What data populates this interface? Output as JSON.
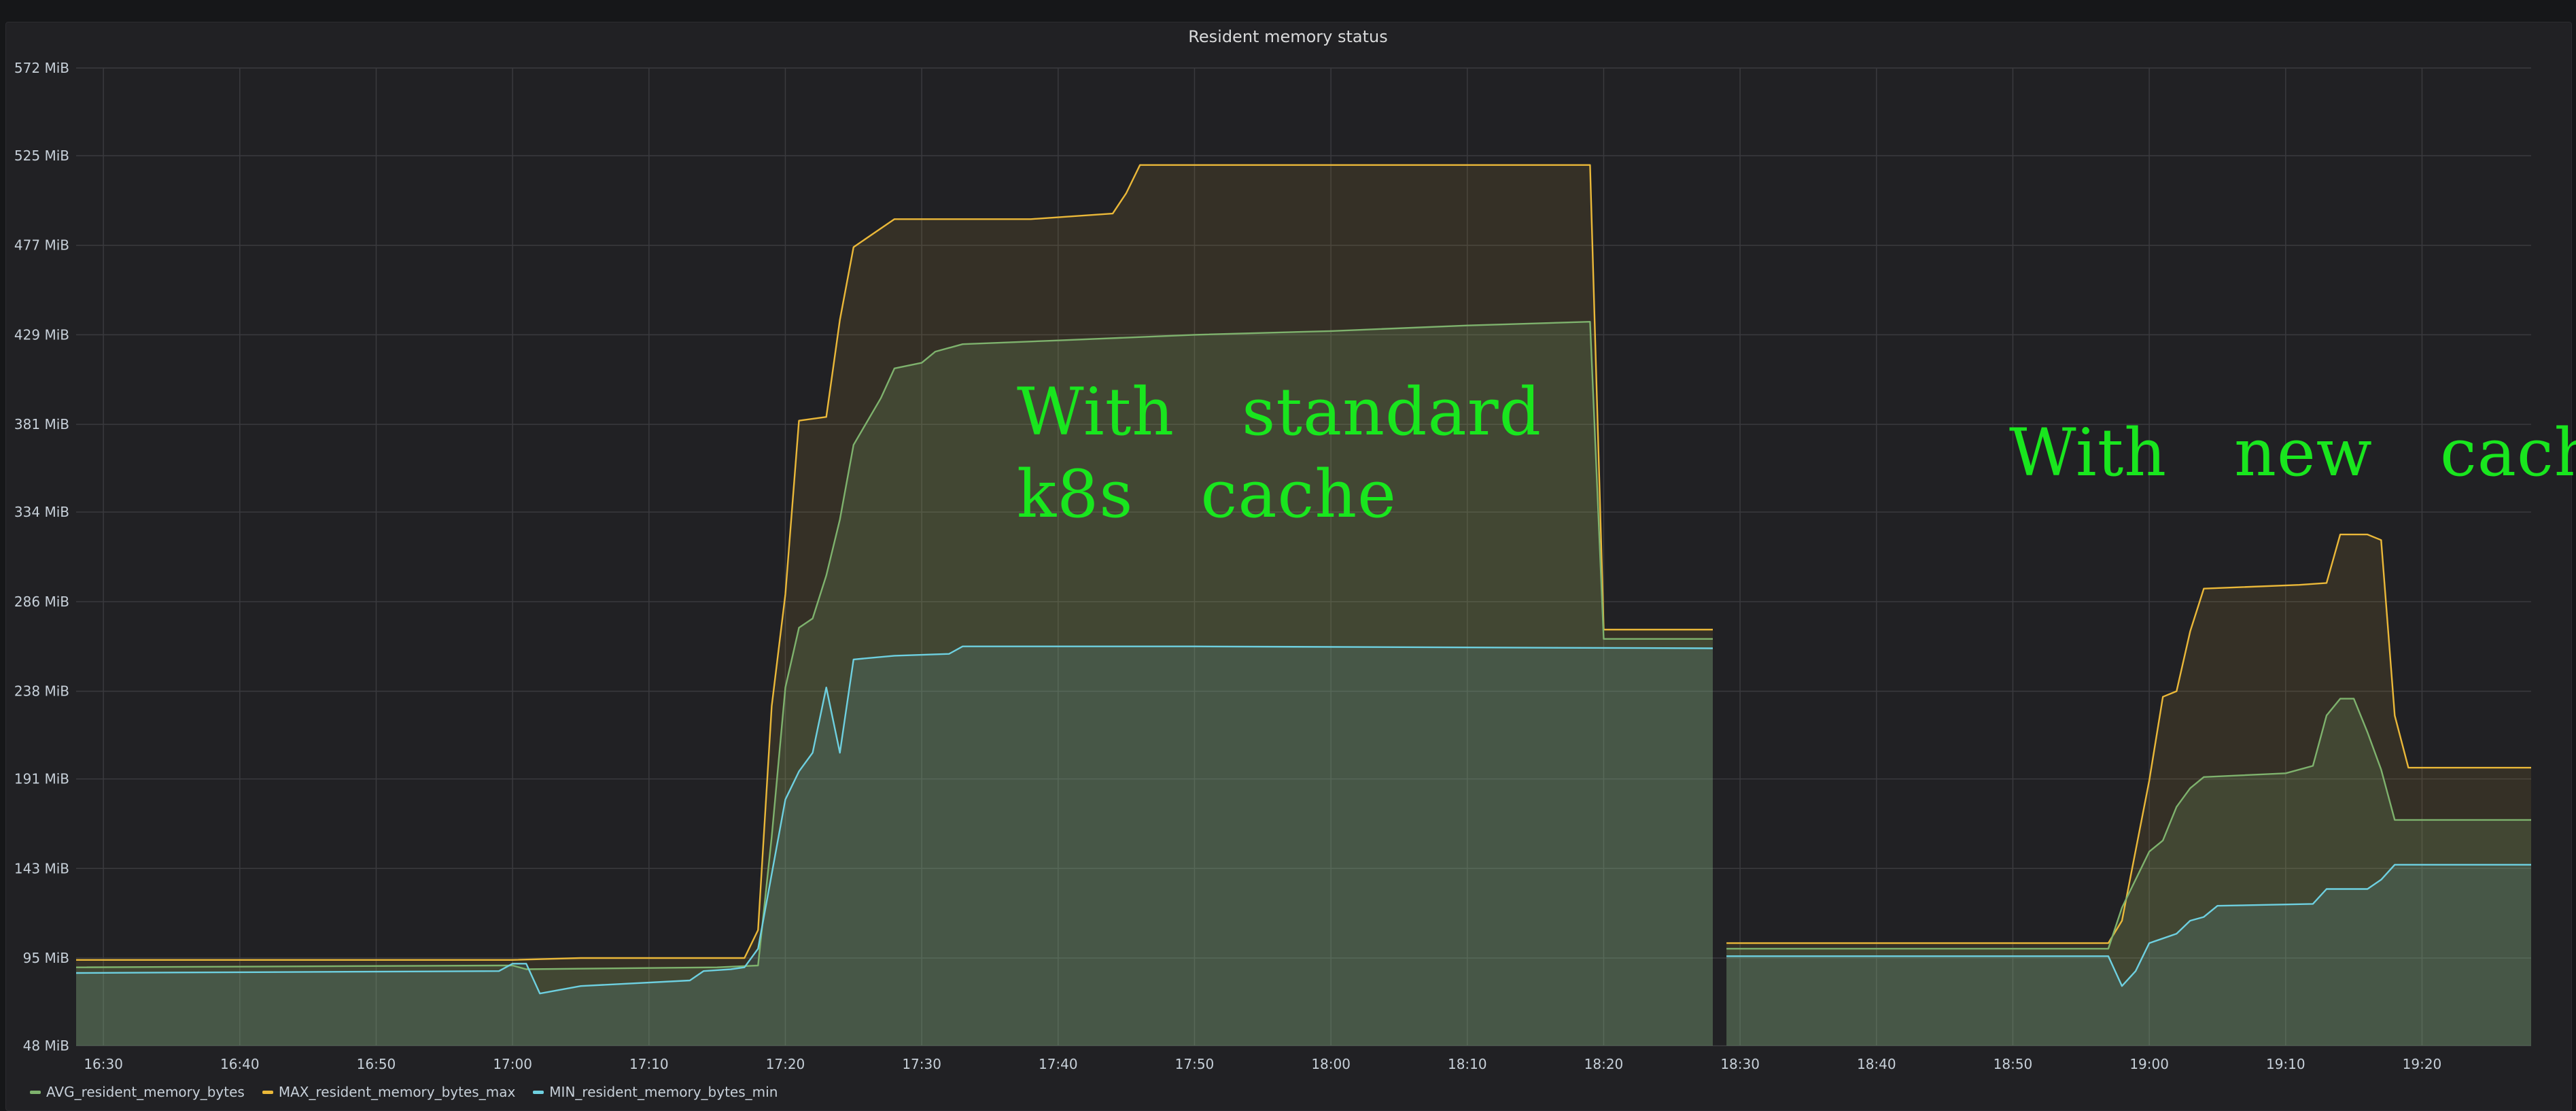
{
  "chart_data": {
    "type": "area",
    "title": "Resident memory status",
    "y_ticks": [
      "48 MiB",
      "95 MiB",
      "143 MiB",
      "191 MiB",
      "238 MiB",
      "286 MiB",
      "334 MiB",
      "381 MiB",
      "429 MiB",
      "477 MiB",
      "525 MiB",
      "572 MiB"
    ],
    "ylim": [
      48,
      572
    ],
    "x_ticks": [
      "16:30",
      "16:40",
      "16:50",
      "17:00",
      "17:10",
      "17:20",
      "17:30",
      "17:40",
      "17:50",
      "18:00",
      "18:10",
      "18:20",
      "18:30",
      "18:40",
      "18:50",
      "19:00",
      "19:10",
      "19:20"
    ],
    "xlim": [
      "16:28",
      "19:28"
    ],
    "grid": true,
    "legend_position": "bottom-left",
    "series": [
      {
        "name": "AVG_resident_memory_bytes",
        "color": "#7eb26d",
        "segments": [
          [
            [
              "16:28",
              90
            ],
            [
              "16:59",
              91
            ],
            [
              "17:00",
              91
            ],
            [
              "17:01",
              89
            ],
            [
              "17:15",
              90
            ],
            [
              "17:18",
              91
            ],
            [
              "17:19",
              160
            ],
            [
              "17:20",
              240
            ],
            [
              "17:21",
              272
            ],
            [
              "17:22",
              277
            ],
            [
              "17:23",
              300
            ],
            [
              "17:24",
              330
            ],
            [
              "17:25",
              370
            ],
            [
              "17:27",
              395
            ],
            [
              "17:28",
              411
            ],
            [
              "17:30",
              414
            ],
            [
              "17:31",
              420
            ],
            [
              "17:33",
              424
            ],
            [
              "17:40",
              426
            ],
            [
              "17:50",
              429
            ],
            [
              "18:00",
              431
            ],
            [
              "18:10",
              434
            ],
            [
              "18:19",
              436
            ],
            [
              "18:20",
              266
            ],
            [
              "18:28",
              266
            ]
          ],
          [
            [
              "18:29",
              100
            ],
            [
              "18:55",
              100
            ],
            [
              "18:57",
              100
            ],
            [
              "18:58",
              122
            ],
            [
              "19:00",
              152
            ],
            [
              "19:01",
              158
            ],
            [
              "19:02",
              176
            ],
            [
              "19:03",
              186
            ],
            [
              "19:04",
              192
            ],
            [
              "19:10",
              194
            ],
            [
              "19:12",
              198
            ],
            [
              "19:13",
              225
            ],
            [
              "19:14",
              234
            ],
            [
              "19:15",
              234
            ],
            [
              "19:16",
              216
            ],
            [
              "19:17",
              196
            ],
            [
              "19:18",
              169
            ],
            [
              "19:28",
              169
            ]
          ]
        ]
      },
      {
        "name": "MAX_resident_memory_bytes_max",
        "color": "#eab839",
        "segments": [
          [
            [
              "16:28",
              94
            ],
            [
              "17:00",
              94
            ],
            [
              "17:05",
              95
            ],
            [
              "17:17",
              95
            ],
            [
              "17:18",
              110
            ],
            [
              "17:19",
              230
            ],
            [
              "17:20",
              290
            ],
            [
              "17:21",
              383
            ],
            [
              "17:23",
              385
            ],
            [
              "17:24",
              437
            ],
            [
              "17:25",
              476
            ],
            [
              "17:27",
              486
            ],
            [
              "17:28",
              491
            ],
            [
              "17:38",
              491
            ],
            [
              "17:44",
              494
            ],
            [
              "17:45",
              505
            ],
            [
              "17:46",
              520
            ],
            [
              "18:19",
              520
            ],
            [
              "18:20",
              271
            ],
            [
              "18:28",
              271
            ]
          ],
          [
            [
              "18:29",
              103
            ],
            [
              "18:57",
              103
            ],
            [
              "18:58",
              115
            ],
            [
              "19:00",
              190
            ],
            [
              "19:01",
              235
            ],
            [
              "19:02",
              238
            ],
            [
              "19:03",
              270
            ],
            [
              "19:04",
              293
            ],
            [
              "19:11",
              295
            ],
            [
              "19:13",
              296
            ],
            [
              "19:14",
              322
            ],
            [
              "19:16",
              322
            ],
            [
              "19:17",
              319
            ],
            [
              "19:18",
              225
            ],
            [
              "19:19",
              197
            ],
            [
              "19:28",
              197
            ]
          ]
        ]
      },
      {
        "name": "MIN_resident_memory_bytes_min",
        "color": "#6ed0e0",
        "segments": [
          [
            [
              "16:28",
              87
            ],
            [
              "16:59",
              88
            ],
            [
              "17:00",
              92
            ],
            [
              "17:01",
              92
            ],
            [
              "17:02",
              76
            ],
            [
              "17:05",
              80
            ],
            [
              "17:13",
              83
            ],
            [
              "17:14",
              88
            ],
            [
              "17:16",
              89
            ],
            [
              "17:17",
              90
            ],
            [
              "17:18",
              100
            ],
            [
              "17:19",
              140
            ],
            [
              "17:20",
              180
            ],
            [
              "17:21",
              195
            ],
            [
              "17:22",
              205
            ],
            [
              "17:23",
              240
            ],
            [
              "17:24",
              205
            ],
            [
              "17:25",
              255
            ],
            [
              "17:28",
              257
            ],
            [
              "17:32",
              258
            ],
            [
              "17:33",
              262
            ],
            [
              "17:50",
              262
            ],
            [
              "18:28",
              261
            ]
          ],
          [
            [
              "18:29",
              96
            ],
            [
              "18:57",
              96
            ],
            [
              "18:58",
              80
            ],
            [
              "18:59",
              88
            ],
            [
              "19:00",
              103
            ],
            [
              "19:02",
              108
            ],
            [
              "19:03",
              115
            ],
            [
              "19:04",
              117
            ],
            [
              "19:05",
              123
            ],
            [
              "19:12",
              124
            ],
            [
              "19:13",
              132
            ],
            [
              "19:16",
              132
            ],
            [
              "19:17",
              137
            ],
            [
              "19:18",
              145
            ],
            [
              "19:28",
              145
            ]
          ]
        ]
      }
    ],
    "annotations": [
      "With  standard\nk8s  cache",
      "With  new  cache"
    ]
  }
}
